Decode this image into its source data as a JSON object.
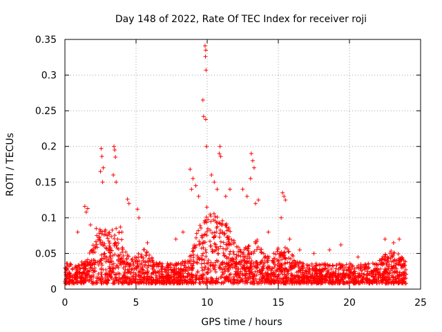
{
  "chart_data": {
    "type": "scatter",
    "title": "Day 148 of 2022, Rate Of TEC Index for receiver roji",
    "xlabel": "GPS time / hours",
    "ylabel": "ROTI / TECUs",
    "xlim": [
      0,
      25
    ],
    "ylim": [
      0,
      0.35
    ],
    "x_ticks": [
      "0",
      "5",
      "10",
      "15",
      "20",
      "25"
    ],
    "y_ticks": [
      "0",
      "0.05",
      "0.1",
      "0.15",
      "0.2",
      "0.25",
      "0.3",
      "0.35"
    ],
    "grid": true,
    "marker": "+",
    "color": "#ff0000",
    "series": [
      {
        "name": "ROTI",
        "points": [
          [
            9.85,
            0.341
          ],
          [
            9.9,
            0.335
          ],
          [
            9.88,
            0.326
          ],
          [
            9.92,
            0.307
          ],
          [
            9.7,
            0.265
          ],
          [
            9.75,
            0.242
          ],
          [
            9.9,
            0.238
          ],
          [
            9.95,
            0.2
          ],
          [
            10.9,
            0.2
          ],
          [
            10.85,
            0.19
          ],
          [
            10.95,
            0.186
          ],
          [
            13.1,
            0.19
          ],
          [
            13.2,
            0.18
          ],
          [
            13.3,
            0.17
          ],
          [
            13.05,
            0.155
          ],
          [
            2.55,
            0.197
          ],
          [
            2.6,
            0.186
          ],
          [
            2.7,
            0.17
          ],
          [
            2.5,
            0.165
          ],
          [
            2.65,
            0.15
          ],
          [
            3.45,
            0.2
          ],
          [
            3.5,
            0.195
          ],
          [
            3.55,
            0.185
          ],
          [
            3.4,
            0.16
          ],
          [
            3.6,
            0.15
          ],
          [
            1.4,
            0.116
          ],
          [
            1.6,
            0.113
          ],
          [
            1.5,
            0.108
          ],
          [
            4.4,
            0.126
          ],
          [
            4.5,
            0.12
          ],
          [
            5.1,
            0.112
          ],
          [
            5.2,
            0.1
          ],
          [
            8.8,
            0.168
          ],
          [
            9.0,
            0.155
          ],
          [
            8.9,
            0.14
          ],
          [
            9.2,
            0.145
          ],
          [
            9.4,
            0.13
          ],
          [
            10.3,
            0.16
          ],
          [
            10.5,
            0.15
          ],
          [
            10.7,
            0.14
          ],
          [
            11.3,
            0.13
          ],
          [
            11.6,
            0.14
          ],
          [
            12.5,
            0.14
          ],
          [
            12.8,
            0.13
          ],
          [
            13.4,
            0.12
          ],
          [
            13.6,
            0.125
          ],
          [
            15.3,
            0.135
          ],
          [
            15.4,
            0.13
          ],
          [
            15.5,
            0.125
          ],
          [
            15.2,
            0.1
          ],
          [
            0.9,
            0.08
          ],
          [
            1.8,
            0.09
          ],
          [
            2.2,
            0.085
          ],
          [
            3.9,
            0.087
          ],
          [
            4.0,
            0.08
          ],
          [
            5.8,
            0.065
          ],
          [
            7.8,
            0.07
          ],
          [
            8.3,
            0.08
          ],
          [
            14.3,
            0.08
          ],
          [
            15.8,
            0.07
          ],
          [
            16.5,
            0.055
          ],
          [
            17.5,
            0.05
          ],
          [
            18.6,
            0.055
          ],
          [
            19.4,
            0.062
          ],
          [
            20.6,
            0.045
          ],
          [
            22.5,
            0.07
          ],
          [
            23.1,
            0.065
          ],
          [
            23.5,
            0.07
          ]
        ]
      }
    ]
  }
}
